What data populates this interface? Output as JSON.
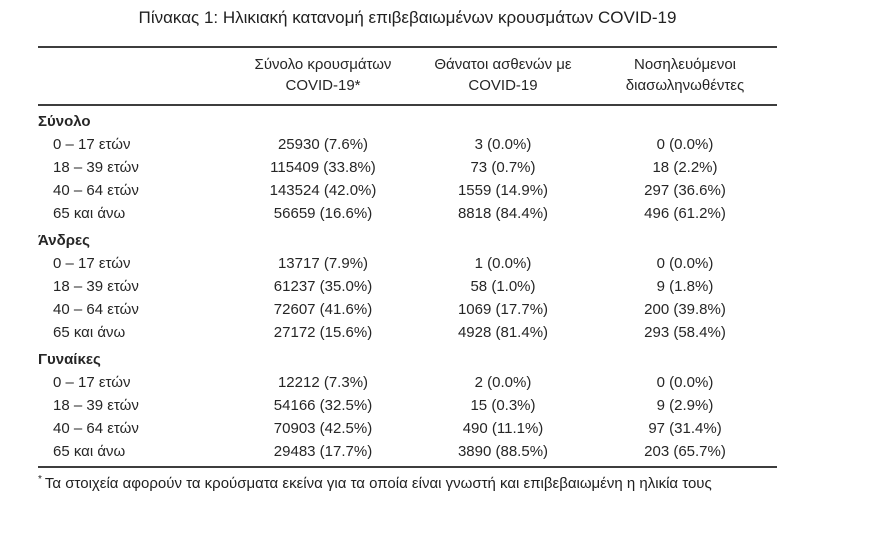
{
  "title": "Πίνακας 1: Ηλικιακή κατανομή επιβεβαιωμένων κρουσμάτων COVID-19",
  "table": {
    "column_headers": [
      {
        "line1": "Σύνολο κρουσμάτων",
        "line2": "COVID-19*"
      },
      {
        "line1": "Θάνατοι ασθενών με",
        "line2": "COVID-19"
      },
      {
        "line1": "Νοσηλευόμενοι",
        "line2": "διασωληνωθέντες"
      }
    ],
    "sections": [
      {
        "label": "Σύνολο",
        "rows": [
          {
            "age": "0 – 17 ετών",
            "cases": "25930 (7.6%)",
            "deaths": "3 (0.0%)",
            "intubated": "0 (0.0%)"
          },
          {
            "age": "18 – 39 ετών",
            "cases": "115409 (33.8%)",
            "deaths": "73 (0.7%)",
            "intubated": "18 (2.2%)"
          },
          {
            "age": "40 – 64 ετών",
            "cases": "143524 (42.0%)",
            "deaths": "1559 (14.9%)",
            "intubated": "297 (36.6%)"
          },
          {
            "age": "65 και άνω",
            "cases": "56659 (16.6%)",
            "deaths": "8818 (84.4%)",
            "intubated": "496 (61.2%)"
          }
        ]
      },
      {
        "label": "Άνδρες",
        "rows": [
          {
            "age": "0 – 17 ετών",
            "cases": "13717 (7.9%)",
            "deaths": "1 (0.0%)",
            "intubated": "0 (0.0%)"
          },
          {
            "age": "18 – 39 ετών",
            "cases": "61237 (35.0%)",
            "deaths": "58 (1.0%)",
            "intubated": "9 (1.8%)"
          },
          {
            "age": "40 – 64 ετών",
            "cases": "72607 (41.6%)",
            "deaths": "1069 (17.7%)",
            "intubated": "200 (39.8%)"
          },
          {
            "age": "65 και άνω",
            "cases": "27172 (15.6%)",
            "deaths": "4928 (81.4%)",
            "intubated": "293 (58.4%)"
          }
        ]
      },
      {
        "label": "Γυναίκες",
        "rows": [
          {
            "age": "0 – 17 ετών",
            "cases": "12212 (7.3%)",
            "deaths": "2 (0.0%)",
            "intubated": "0 (0.0%)"
          },
          {
            "age": "18 – 39 ετών",
            "cases": "54166 (32.5%)",
            "deaths": "15 (0.3%)",
            "intubated": "9 (2.9%)"
          },
          {
            "age": "40 – 64 ετών",
            "cases": "70903 (42.5%)",
            "deaths": "490 (11.1%)",
            "intubated": "97 (31.4%)"
          },
          {
            "age": "65 και άνω",
            "cases": "29483 (17.7%)",
            "deaths": "3890 (88.5%)",
            "intubated": "203 (65.7%)"
          }
        ]
      }
    ]
  },
  "footnote": {
    "marker": "*",
    "text": "Τα στοιχεία αφορούν τα κρούσματα εκείνα για τα οποία είναι γνωστή και επιβεβαιωμένη η ηλικία τους"
  },
  "colors": {
    "text": "#262626",
    "rule": "#3d3d3d",
    "background": "#ffffff"
  }
}
